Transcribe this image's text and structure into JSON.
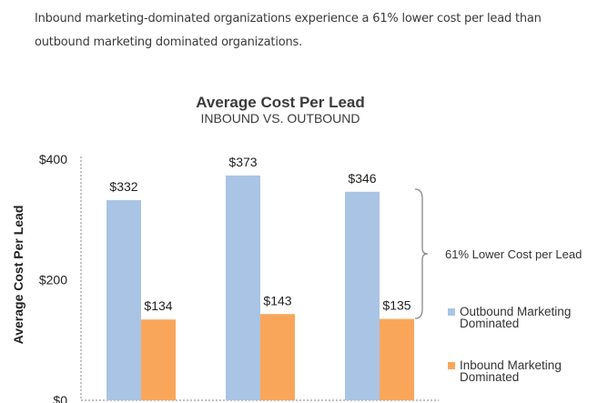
{
  "intro": {
    "line1": "Inbound marketing-dominated organizations experience a 61% lower cost per lead than",
    "line2": "outbound marketing dominated organizations."
  },
  "colors": {
    "outbound": "#a9c4e4",
    "inbound": "#f9a65a",
    "axis": "#999999",
    "brace": "#888888"
  },
  "chart_data": {
    "type": "bar",
    "title": "Average Cost Per Lead",
    "subtitle": "INBOUND VS. OUTBOUND",
    "xlabel": "",
    "ylabel": "Average Cost Per Lead",
    "ylim": [
      0,
      400
    ],
    "yticks": [
      "$0",
      "$200",
      "$400"
    ],
    "ytick_values": [
      0,
      200,
      400
    ],
    "categories": [
      "",
      "",
      ""
    ],
    "series": [
      {
        "name_lines": [
          "Outbound Marketing",
          "Dominated"
        ],
        "values": [
          332,
          373,
          346
        ],
        "labels": [
          "$332",
          "$373",
          "$346"
        ]
      },
      {
        "name_lines": [
          "Inbound Marketing",
          "Dominated"
        ],
        "values": [
          134,
          143,
          135
        ],
        "labels": [
          "$134",
          "$143",
          "$135"
        ]
      }
    ],
    "annotation": "61% Lower Cost per Lead",
    "legend": "right",
    "grid": false
  }
}
